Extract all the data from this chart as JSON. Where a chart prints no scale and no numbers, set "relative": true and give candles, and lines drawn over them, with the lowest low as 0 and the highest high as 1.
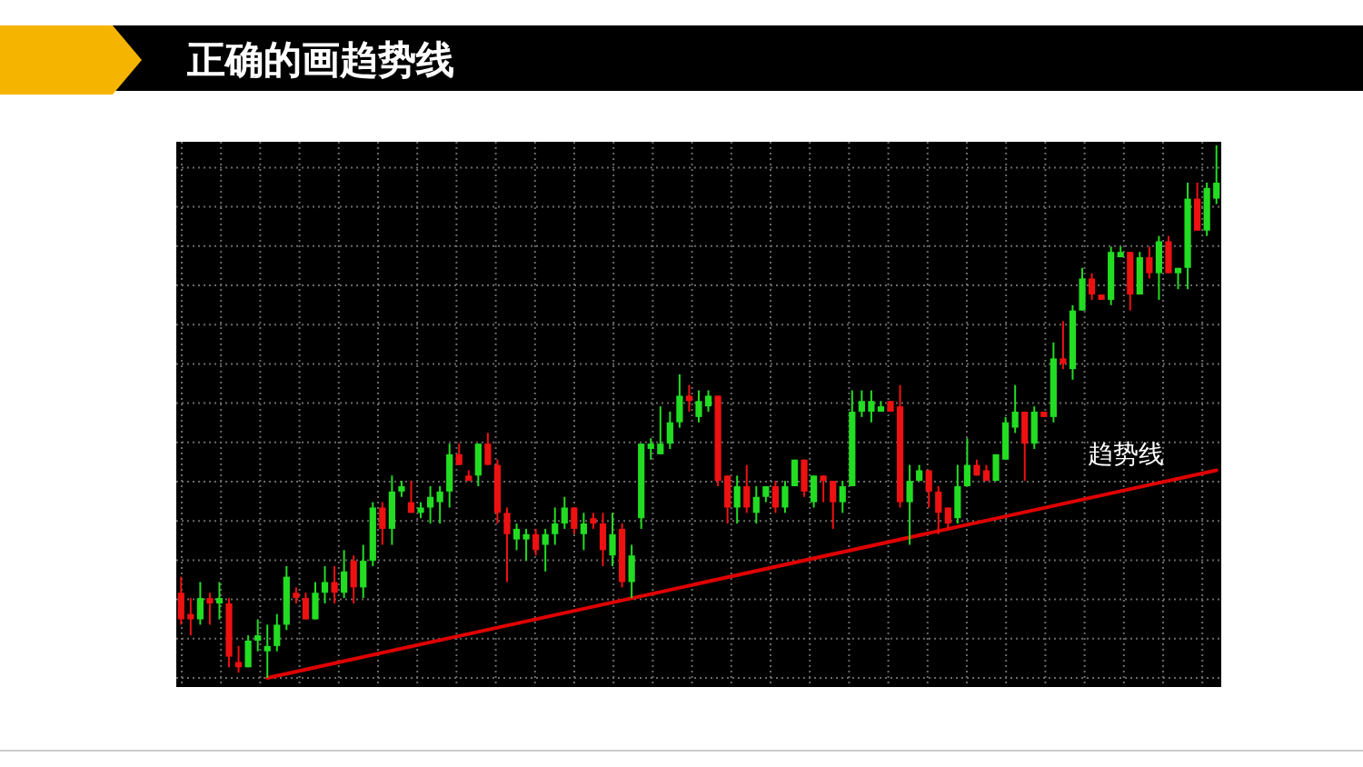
{
  "chart_data": {
    "type": "candlestick",
    "title": "正确的画趋势线",
    "relative": true,
    "grid": true,
    "categories": [
      null,
      null,
      null,
      null,
      null,
      null,
      null,
      null,
      null,
      null,
      null,
      null,
      null,
      null,
      null,
      null,
      null,
      null,
      null,
      null,
      null,
      null,
      null,
      null,
      null,
      null,
      null,
      null,
      null,
      null,
      null,
      null,
      null,
      null,
      null,
      null,
      null,
      null,
      null,
      null,
      null,
      null,
      null,
      null,
      null,
      null,
      null,
      null,
      null,
      null,
      null,
      null,
      null,
      null,
      null,
      null,
      null,
      null,
      null,
      null,
      null,
      null,
      null,
      null,
      null,
      null,
      null,
      null,
      null,
      null,
      null,
      null,
      null,
      null,
      null,
      null,
      null,
      null,
      null,
      null,
      null,
      null,
      null,
      null,
      null,
      null,
      null,
      null,
      null,
      null,
      null,
      null,
      null,
      null,
      null,
      null,
      null,
      null,
      null,
      null,
      null,
      null,
      null,
      null,
      null,
      null,
      null,
      null,
      null
    ],
    "ohlc": [
      [
        0.16,
        0.19,
        0.1,
        0.11
      ],
      [
        0.12,
        0.15,
        0.08,
        0.11
      ],
      [
        0.11,
        0.18,
        0.1,
        0.15
      ],
      [
        0.15,
        0.16,
        0.1,
        0.14
      ],
      [
        0.14,
        0.18,
        0.11,
        0.15
      ],
      [
        0.14,
        0.15,
        0.02,
        0.04
      ],
      [
        0.03,
        0.06,
        0.01,
        0.02
      ],
      [
        0.02,
        0.08,
        0.02,
        0.07
      ],
      [
        0.07,
        0.11,
        0.05,
        0.08
      ],
      [
        0.05,
        0.1,
        0,
        0.06
      ],
      [
        0.06,
        0.12,
        0.05,
        0.1
      ],
      [
        0.1,
        0.21,
        0.09,
        0.19
      ],
      [
        0.16,
        0.17,
        0.14,
        0.15
      ],
      [
        0.15,
        0.16,
        0.11,
        0.11
      ],
      [
        0.11,
        0.18,
        0.11,
        0.16
      ],
      [
        0.16,
        0.21,
        0.14,
        0.18
      ],
      [
        0.18,
        0.21,
        0.14,
        0.16
      ],
      [
        0.16,
        0.24,
        0.15,
        0.2
      ],
      [
        0.22,
        0.23,
        0.14,
        0.17
      ],
      [
        0.17,
        0.25,
        0.15,
        0.22
      ],
      [
        0.22,
        0.33,
        0.21,
        0.32
      ],
      [
        0.32,
        0.33,
        0.25,
        0.28
      ],
      [
        0.28,
        0.38,
        0.25,
        0.35
      ],
      [
        0.35,
        0.37,
        0.34,
        0.36
      ],
      [
        0.33,
        0.37,
        0.31,
        0.31
      ],
      [
        0.31,
        0.33,
        0.3,
        0.32
      ],
      [
        0.32,
        0.36,
        0.29,
        0.34
      ],
      [
        0.33,
        0.36,
        0.29,
        0.35
      ],
      [
        0.35,
        0.44,
        0.32,
        0.42
      ],
      [
        0.42,
        0.44,
        0.4,
        0.4
      ],
      [
        0.38,
        0.39,
        0.37,
        0.37
      ],
      [
        0.38,
        0.44,
        0.36,
        0.44
      ],
      [
        0.44,
        0.46,
        0.4,
        0.4
      ],
      [
        0.4,
        0.41,
        0.29,
        0.31
      ],
      [
        0.31,
        0.32,
        0.18,
        0.27
      ],
      [
        0.26,
        0.29,
        0.24,
        0.28
      ],
      [
        0.26,
        0.28,
        0.22,
        0.27
      ],
      [
        0.27,
        0.28,
        0.23,
        0.24
      ],
      [
        0.25,
        0.28,
        0.2,
        0.27
      ],
      [
        0.27,
        0.32,
        0.25,
        0.29
      ],
      [
        0.29,
        0.34,
        0.28,
        0.32
      ],
      [
        0.32,
        0.32,
        0.27,
        0.28
      ],
      [
        0.27,
        0.31,
        0.24,
        0.29
      ],
      [
        0.3,
        0.31,
        0.28,
        0.29
      ],
      [
        0.29,
        0.31,
        0.21,
        0.24
      ],
      [
        0.23,
        0.31,
        0.21,
        0.27
      ],
      [
        0.28,
        0.29,
        0.17,
        0.18
      ],
      [
        0.18,
        0.25,
        0.15,
        0.23
      ],
      [
        0.3,
        0.44,
        0.28,
        0.44
      ],
      [
        0.43,
        0.45,
        0.41,
        0.44
      ],
      [
        0.42,
        0.51,
        0.42,
        0.44
      ],
      [
        0.44,
        0.5,
        0.43,
        0.48
      ],
      [
        0.48,
        0.57,
        0.47,
        0.53
      ],
      [
        0.53,
        0.55,
        0.5,
        0.52
      ],
      [
        0.49,
        0.54,
        0.48,
        0.52
      ],
      [
        0.51,
        0.54,
        0.5,
        0.53
      ],
      [
        0.53,
        0.53,
        0.36,
        0.37
      ],
      [
        0.38,
        0.38,
        0.29,
        0.32
      ],
      [
        0.32,
        0.38,
        0.29,
        0.36
      ],
      [
        0.36,
        0.4,
        0.31,
        0.32
      ],
      [
        0.31,
        0.36,
        0.29,
        0.34
      ],
      [
        0.34,
        0.36,
        0.33,
        0.36
      ],
      [
        0.36,
        0.37,
        0.31,
        0.32
      ],
      [
        0.32,
        0.37,
        0.31,
        0.36
      ],
      [
        0.36,
        0.41,
        0.36,
        0.41
      ],
      [
        0.41,
        0.41,
        0.34,
        0.35
      ],
      [
        0.33,
        0.38,
        0.32,
        0.38
      ],
      [
        0.38,
        0.38,
        0.33,
        0.37
      ],
      [
        0.37,
        0.37,
        0.28,
        0.33
      ],
      [
        0.33,
        0.37,
        0.31,
        0.36
      ],
      [
        0.36,
        0.54,
        0.36,
        0.5
      ],
      [
        0.5,
        0.54,
        0.49,
        0.52
      ],
      [
        0.5,
        0.54,
        0.48,
        0.52
      ],
      [
        0.5,
        0.52,
        0.5,
        0.51
      ],
      [
        0.52,
        0.52,
        0.5,
        0.5
      ],
      [
        0.51,
        0.55,
        0.32,
        0.33
      ],
      [
        0.33,
        0.4,
        0.25,
        0.37
      ],
      [
        0.37,
        0.4,
        0.37,
        0.39
      ],
      [
        0.39,
        0.39,
        0.32,
        0.35
      ],
      [
        0.35,
        0.36,
        0.27,
        0.31
      ],
      [
        0.32,
        0.32,
        0.28,
        0.29
      ],
      [
        0.3,
        0.4,
        0.29,
        0.36
      ],
      [
        0.36,
        0.45,
        0.36,
        0.4
      ],
      [
        0.4,
        0.41,
        0.38,
        0.38
      ],
      [
        0.39,
        0.4,
        0.37,
        0.37
      ],
      [
        0.37,
        0.42,
        0.37,
        0.42
      ],
      [
        0.41,
        0.49,
        0.41,
        0.48
      ],
      [
        0.47,
        0.55,
        0.46,
        0.5
      ],
      [
        0.5,
        0.5,
        0.37,
        0.44
      ],
      [
        0.44,
        0.51,
        0.43,
        0.5
      ],
      [
        0.5,
        0.5,
        0.49,
        0.49
      ],
      [
        0.49,
        0.63,
        0.48,
        0.6
      ],
      [
        0.6,
        0.67,
        0.58,
        0.59
      ],
      [
        0.58,
        0.7,
        0.56,
        0.69
      ],
      [
        0.69,
        0.77,
        0.69,
        0.75
      ],
      [
        0.75,
        0.76,
        0.71,
        0.72
      ],
      [
        0.72,
        0.72,
        0.71,
        0.71
      ],
      [
        0.71,
        0.81,
        0.7,
        0.8
      ],
      [
        0.79,
        0.81,
        0.79,
        0.8
      ],
      [
        0.8,
        0.8,
        0.69,
        0.72
      ],
      [
        0.72,
        0.8,
        0.72,
        0.79
      ],
      [
        0.79,
        0.81,
        0.75,
        0.76
      ],
      [
        0.76,
        0.83,
        0.71,
        0.82
      ],
      [
        0.82,
        0.83,
        0.76,
        0.76
      ],
      [
        0.76,
        0.77,
        0.73,
        0.77
      ],
      [
        0.77,
        0.93,
        0.73,
        0.9
      ],
      [
        0.9,
        0.93,
        0.84,
        0.84
      ],
      [
        0.84,
        0.93,
        0.83,
        0.92
      ],
      [
        0.9,
        1,
        0.89,
        0.93
      ]
    ],
    "series": [
      {
        "type": "line",
        "values": [
          null,
          null,
          null,
          null,
          null,
          null,
          null,
          null,
          null,
          0,
          null,
          null,
          null,
          null,
          null,
          null,
          null,
          null,
          null,
          null,
          null,
          null,
          null,
          null,
          null,
          null,
          null,
          null,
          null,
          null,
          null,
          null,
          null,
          null,
          null,
          null,
          null,
          null,
          null,
          null,
          null,
          null,
          null,
          null,
          null,
          null,
          null,
          null,
          null,
          null,
          null,
          null,
          null,
          null,
          null,
          null,
          null,
          null,
          null,
          null,
          null,
          null,
          null,
          null,
          null,
          null,
          null,
          null,
          null,
          null,
          null,
          null,
          null,
          null,
          null,
          null,
          null,
          null,
          null,
          null,
          null,
          null,
          null,
          null,
          null,
          null,
          null,
          null,
          null,
          null,
          null,
          null,
          null,
          null,
          null,
          null,
          null,
          null,
          null,
          null,
          null,
          null,
          null,
          null,
          null,
          null,
          null,
          null,
          0.39
        ],
        "color": "#e00000"
      }
    ],
    "annotations": [
      "趋势线"
    ]
  }
}
